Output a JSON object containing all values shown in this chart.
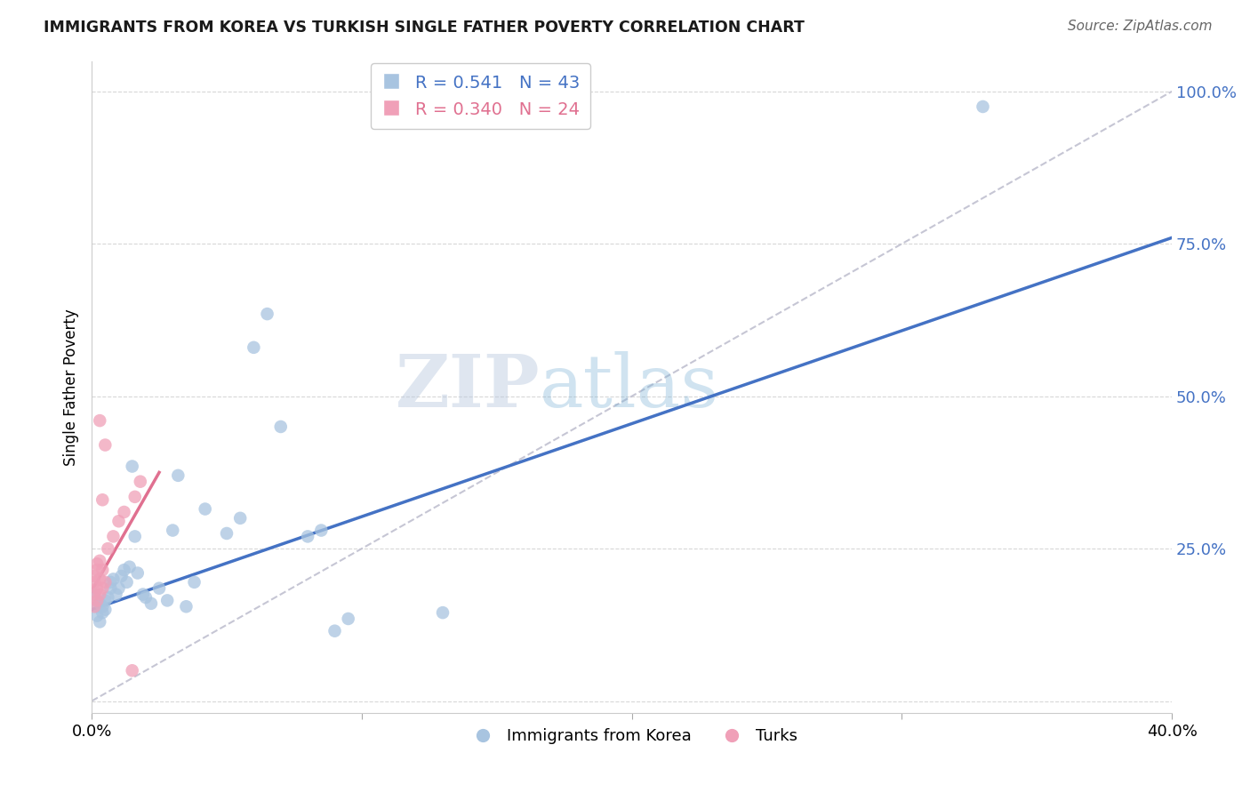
{
  "title": "IMMIGRANTS FROM KOREA VS TURKISH SINGLE FATHER POVERTY CORRELATION CHART",
  "source": "Source: ZipAtlas.com",
  "ylabel": "Single Father Poverty",
  "yticks": [
    0.0,
    0.25,
    0.5,
    0.75,
    1.0
  ],
  "ytick_labels": [
    "",
    "25.0%",
    "50.0%",
    "75.0%",
    "100.0%"
  ],
  "xticks": [
    0.0,
    0.1,
    0.2,
    0.3,
    0.4
  ],
  "xtick_labels": [
    "0.0%",
    "",
    "",
    "",
    "40.0%"
  ],
  "xlim": [
    0.0,
    0.4
  ],
  "ylim": [
    -0.02,
    1.05
  ],
  "korea_R": 0.541,
  "korea_N": 43,
  "turks_R": 0.34,
  "turks_N": 24,
  "korea_color": "#a8c4e0",
  "turks_color": "#f0a0b8",
  "korea_line_color": "#4472c4",
  "turks_line_color": "#e07090",
  "diagonal_color": "#c0c0d0",
  "watermark": "ZIPatlas",
  "korea_scatter": [
    [
      0.001,
      0.175
    ],
    [
      0.002,
      0.155
    ],
    [
      0.002,
      0.14
    ],
    [
      0.003,
      0.13
    ],
    [
      0.003,
      0.16
    ],
    [
      0.004,
      0.145
    ],
    [
      0.004,
      0.155
    ],
    [
      0.005,
      0.15
    ],
    [
      0.005,
      0.165
    ],
    [
      0.006,
      0.17
    ],
    [
      0.007,
      0.185
    ],
    [
      0.007,
      0.195
    ],
    [
      0.008,
      0.2
    ],
    [
      0.009,
      0.175
    ],
    [
      0.01,
      0.185
    ],
    [
      0.011,
      0.205
    ],
    [
      0.012,
      0.215
    ],
    [
      0.013,
      0.195
    ],
    [
      0.014,
      0.22
    ],
    [
      0.015,
      0.385
    ],
    [
      0.016,
      0.27
    ],
    [
      0.017,
      0.21
    ],
    [
      0.019,
      0.175
    ],
    [
      0.02,
      0.17
    ],
    [
      0.022,
      0.16
    ],
    [
      0.025,
      0.185
    ],
    [
      0.028,
      0.165
    ],
    [
      0.03,
      0.28
    ],
    [
      0.032,
      0.37
    ],
    [
      0.035,
      0.155
    ],
    [
      0.038,
      0.195
    ],
    [
      0.042,
      0.315
    ],
    [
      0.05,
      0.275
    ],
    [
      0.055,
      0.3
    ],
    [
      0.06,
      0.58
    ],
    [
      0.065,
      0.635
    ],
    [
      0.07,
      0.45
    ],
    [
      0.08,
      0.27
    ],
    [
      0.085,
      0.28
    ],
    [
      0.09,
      0.115
    ],
    [
      0.095,
      0.135
    ],
    [
      0.13,
      0.145
    ],
    [
      0.33,
      0.975
    ]
  ],
  "turks_scatter": [
    [
      0.001,
      0.155
    ],
    [
      0.001,
      0.175
    ],
    [
      0.001,
      0.195
    ],
    [
      0.001,
      0.205
    ],
    [
      0.002,
      0.165
    ],
    [
      0.002,
      0.185
    ],
    [
      0.002,
      0.215
    ],
    [
      0.002,
      0.225
    ],
    [
      0.003,
      0.175
    ],
    [
      0.003,
      0.2
    ],
    [
      0.003,
      0.23
    ],
    [
      0.003,
      0.46
    ],
    [
      0.004,
      0.185
    ],
    [
      0.004,
      0.215
    ],
    [
      0.004,
      0.33
    ],
    [
      0.005,
      0.195
    ],
    [
      0.005,
      0.42
    ],
    [
      0.006,
      0.25
    ],
    [
      0.008,
      0.27
    ],
    [
      0.01,
      0.295
    ],
    [
      0.012,
      0.31
    ],
    [
      0.016,
      0.335
    ],
    [
      0.018,
      0.36
    ],
    [
      0.015,
      0.05
    ]
  ],
  "korea_line_x": [
    0.0,
    0.4
  ],
  "korea_line_y": [
    0.15,
    0.76
  ],
  "turks_line_x": [
    -0.002,
    0.025
  ],
  "turks_line_y": [
    0.165,
    0.375
  ],
  "diag_line_x": [
    0.0,
    0.4
  ],
  "diag_line_y": [
    0.0,
    1.0
  ]
}
